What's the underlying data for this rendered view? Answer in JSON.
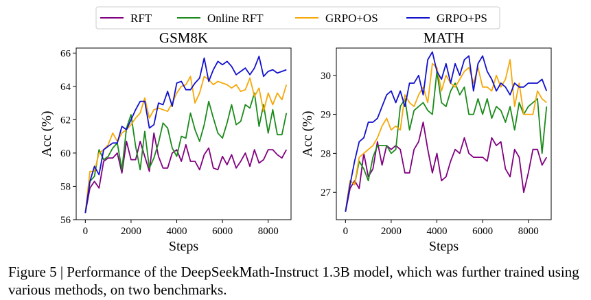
{
  "legend": [
    {
      "name": "RFT",
      "color": "#800080"
    },
    {
      "name": "Online RFT",
      "color": "#1a8a1a"
    },
    {
      "name": "GRPO+OS",
      "color": "#f5a80a"
    },
    {
      "name": "GRPO+PS",
      "color": "#1010cc"
    }
  ],
  "chart_data": [
    {
      "type": "line",
      "title": "GSM8K",
      "xlabel": "Steps",
      "ylabel": "Acc (%)",
      "xlim": [
        -400,
        9000
      ],
      "ylim": [
        56,
        66.3
      ],
      "xticks": [
        0,
        2000,
        4000,
        6000,
        8000
      ],
      "yticks": [
        56,
        58,
        60,
        62,
        64,
        66
      ],
      "x": [
        0,
        200,
        400,
        600,
        800,
        1000,
        1200,
        1400,
        1600,
        1800,
        2000,
        2200,
        2400,
        2600,
        2800,
        3000,
        3200,
        3400,
        3600,
        3800,
        4000,
        4200,
        4400,
        4600,
        4800,
        5000,
        5200,
        5400,
        5600,
        5800,
        6000,
        6200,
        6400,
        6600,
        6800,
        7000,
        7200,
        7400,
        7600,
        7800,
        8000,
        8200,
        8400,
        8600,
        8800
      ],
      "series": [
        {
          "name": "RFT",
          "color": "#800080",
          "values": [
            56.4,
            57.9,
            58.3,
            57.9,
            59.5,
            59.7,
            59.7,
            60.0,
            58.8,
            60.7,
            59.6,
            59.6,
            60.7,
            59.8,
            58.9,
            61.2,
            59.8,
            59.1,
            59.1,
            60.0,
            60.2,
            59.5,
            60.5,
            59.5,
            59.5,
            59.0,
            59.9,
            60.3,
            59.1,
            59.0,
            59.8,
            59.3,
            59.9,
            59.1,
            59.5,
            60.0,
            59.2,
            60.2,
            59.4,
            59.6,
            60.2,
            60.2,
            59.9,
            59.7,
            60.2
          ]
        },
        {
          "name": "Online RFT",
          "color": "#1a8a1a",
          "values": [
            56.4,
            58.3,
            58.6,
            60.2,
            59.6,
            59.8,
            60.3,
            60.6,
            59.0,
            61.5,
            62.3,
            60.4,
            59.0,
            61.3,
            59.1,
            59.7,
            60.6,
            61.8,
            61.5,
            60.3,
            59.8,
            61.0,
            60.9,
            62.4,
            61.4,
            60.7,
            61.7,
            63.1,
            62.1,
            61.2,
            60.9,
            61.8,
            62.9,
            61.7,
            61.9,
            62.9,
            62.7,
            63.6,
            61.6,
            62.9,
            61.2,
            62.6,
            61.1,
            61.1,
            62.4
          ]
        },
        {
          "name": "GRPO+OS",
          "color": "#f5a80a",
          "values": [
            56.4,
            58.9,
            58.9,
            60.0,
            60.2,
            60.5,
            61.2,
            60.7,
            61.2,
            61.4,
            61.7,
            62.1,
            62.4,
            63.3,
            62.1,
            62.6,
            62.7,
            62.6,
            62.5,
            63.0,
            63.6,
            64.0,
            64.1,
            64.6,
            63.0,
            63.6,
            64.6,
            64.4,
            64.1,
            64.3,
            64.2,
            64.1,
            63.9,
            64.1,
            63.7,
            63.8,
            64.5,
            63.4,
            63.9,
            62.5,
            63.6,
            62.9,
            63.6,
            63.2,
            64.1
          ]
        },
        {
          "name": "GRPO+PS",
          "color": "#1010cc",
          "values": [
            56.4,
            58.3,
            59.2,
            58.7,
            60.2,
            60.4,
            60.6,
            60.6,
            61.6,
            61.4,
            62.0,
            62.6,
            63.1,
            63.1,
            61.5,
            61.7,
            63.0,
            62.9,
            63.7,
            62.8,
            64.2,
            64.3,
            63.8,
            63.8,
            64.2,
            64.5,
            65.7,
            64.3,
            65.0,
            65.5,
            65.3,
            65.5,
            65.2,
            64.7,
            64.9,
            65.1,
            64.7,
            65.1,
            65.8,
            64.6,
            64.9,
            65.0,
            64.8,
            64.9,
            65.0
          ]
        }
      ]
    },
    {
      "type": "line",
      "title": "MATH",
      "xlabel": "Steps",
      "ylabel": "Acc (%)",
      "xlim": [
        -400,
        9000
      ],
      "ylim": [
        26.3,
        30.7
      ],
      "xticks": [
        0,
        2000,
        4000,
        6000,
        8000
      ],
      "yticks": [
        27,
        28,
        29,
        30
      ],
      "x": [
        0,
        200,
        400,
        600,
        800,
        1000,
        1200,
        1400,
        1600,
        1800,
        2000,
        2200,
        2400,
        2600,
        2800,
        3000,
        3200,
        3400,
        3600,
        3800,
        4000,
        4200,
        4400,
        4600,
        4800,
        5000,
        5200,
        5400,
        5600,
        5800,
        6000,
        6200,
        6400,
        6600,
        6800,
        7000,
        7200,
        7400,
        7600,
        7800,
        8000,
        8200,
        8400,
        8600,
        8800
      ],
      "series": [
        {
          "name": "RFT",
          "color": "#800080",
          "values": [
            26.5,
            27.1,
            27.3,
            27.1,
            28.0,
            27.4,
            27.6,
            28.3,
            27.7,
            28.2,
            28.1,
            28.2,
            28.1,
            27.5,
            27.5,
            28.1,
            28.3,
            28.8,
            28.1,
            27.5,
            28.0,
            27.3,
            27.4,
            27.8,
            28.1,
            28.0,
            28.4,
            28.0,
            27.9,
            27.9,
            27.9,
            27.8,
            28.4,
            28.2,
            28.3,
            27.6,
            27.4,
            28.1,
            27.9,
            27.0,
            27.5,
            28.1,
            28.1,
            27.7,
            27.9
          ]
        },
        {
          "name": "Online RFT",
          "color": "#1a8a1a",
          "values": [
            26.5,
            27.3,
            27.2,
            27.8,
            27.6,
            27.3,
            27.9,
            28.2,
            28.2,
            28.2,
            28.0,
            28.1,
            29.2,
            29.4,
            28.6,
            29.1,
            29.2,
            29.3,
            29.1,
            29.0,
            30.1,
            29.3,
            29.2,
            29.6,
            29.8,
            29.5,
            29.7,
            29.0,
            29.0,
            29.4,
            29.0,
            29.4,
            28.9,
            29.2,
            29.1,
            28.8,
            29.2,
            28.6,
            29.3,
            29.0,
            29.2,
            29.3,
            29.4,
            28.0,
            29.2
          ]
        },
        {
          "name": "GRPO+OS",
          "color": "#f5a80a",
          "values": [
            26.5,
            27.3,
            27.2,
            27.9,
            28.0,
            28.1,
            28.2,
            28.4,
            28.7,
            28.9,
            28.6,
            28.7,
            28.6,
            29.5,
            29.3,
            29.2,
            29.5,
            29.7,
            29.3,
            30.3,
            30.2,
            29.6,
            30.0,
            29.8,
            29.7,
            29.9,
            30.1,
            30.2,
            29.8,
            30.2,
            29.7,
            29.7,
            29.6,
            30.0,
            29.7,
            29.9,
            30.4,
            29.2,
            29.8,
            29.0,
            29.0,
            29.0,
            29.6,
            29.4,
            29.3
          ]
        },
        {
          "name": "GRPO+PS",
          "color": "#1010cc",
          "values": [
            26.5,
            27.2,
            27.8,
            28.3,
            28.4,
            28.8,
            28.8,
            28.9,
            29.2,
            29.5,
            29.6,
            29.3,
            29.6,
            29.2,
            29.8,
            29.8,
            30.0,
            29.5,
            30.4,
            30.6,
            30.1,
            29.9,
            30.3,
            29.8,
            30.3,
            30.0,
            30.4,
            30.5,
            29.6,
            30.3,
            30.5,
            30.1,
            29.9,
            29.6,
            29.8,
            29.7,
            29.5,
            29.8,
            29.7,
            29.7,
            29.8,
            29.8,
            29.8,
            29.9,
            29.6
          ]
        }
      ]
    }
  ],
  "caption": {
    "label": "Figure 5 | ",
    "text": "Performance of the DeepSeekMath-Instruct 1.3B model, which was further trained using various methods, on two benchmarks."
  }
}
